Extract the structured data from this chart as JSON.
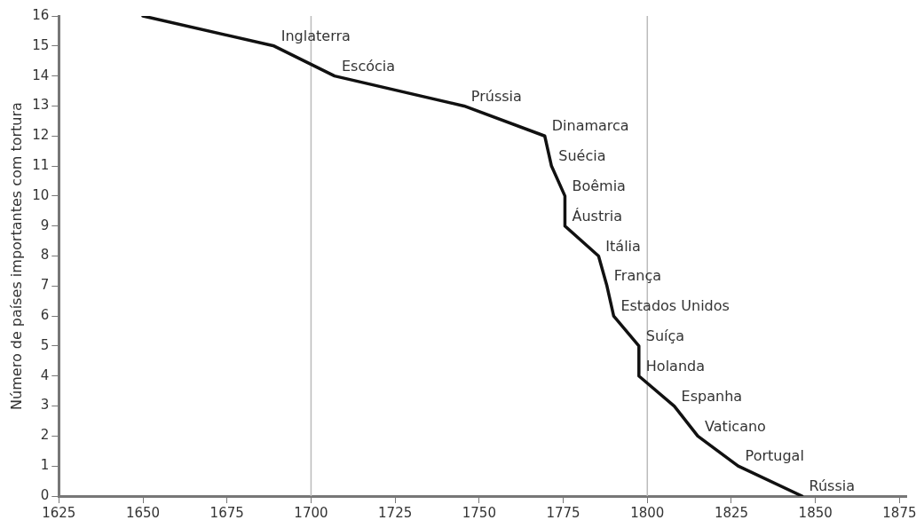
{
  "chart_data": {
    "type": "line",
    "ylabel": "Número de países importantes com tortura",
    "x": [
      1650,
      1689,
      1707,
      1745.5,
      1769.5,
      1771.5,
      1775.5,
      1775.5,
      1785.5,
      1788,
      1790,
      1797.5,
      1797.5,
      1808,
      1815,
      1827,
      1846
    ],
    "series": [
      {
        "color": "#111111",
        "values": [
          16,
          15,
          14,
          13,
          12,
          11,
          10,
          9,
          8,
          7,
          6,
          5,
          4,
          3,
          2,
          1,
          0
        ]
      }
    ],
    "xlim": [
      1625,
      1877
    ],
    "xticks": [
      1625,
      1650,
      1675,
      1700,
      1725,
      1750,
      1775,
      1800,
      1825,
      1850,
      1875
    ],
    "ylim": [
      0,
      16
    ],
    "yticks": [
      0,
      1,
      2,
      3,
      4,
      5,
      6,
      7,
      8,
      9,
      10,
      11,
      12,
      13,
      14,
      15,
      16
    ],
    "grid": false,
    "legend": false,
    "marker": "none",
    "line_style": "solid",
    "ref_lines": [
      {
        "axis": "x",
        "value": 1700,
        "color": "#bbbbbb"
      },
      {
        "axis": "x",
        "value": 1800,
        "color": "#bbbbbb"
      }
    ],
    "annotations": [
      {
        "text": "Inglaterra",
        "x": 1689,
        "y": 15
      },
      {
        "text": "Escócia",
        "x": 1707,
        "y": 14
      },
      {
        "text": "Prússia",
        "x": 1745.5,
        "y": 13
      },
      {
        "text": "Dinamarca",
        "x": 1769.5,
        "y": 12
      },
      {
        "text": "Suécia",
        "x": 1771.5,
        "y": 11
      },
      {
        "text": "Boêmia",
        "x": 1775.5,
        "y": 10
      },
      {
        "text": "Áustria",
        "x": 1775.5,
        "y": 9
      },
      {
        "text": "Itália",
        "x": 1785.5,
        "y": 8
      },
      {
        "text": "França",
        "x": 1788,
        "y": 7
      },
      {
        "text": "Estados Unidos",
        "x": 1790,
        "y": 6
      },
      {
        "text": "Suíça",
        "x": 1797.5,
        "y": 5
      },
      {
        "text": "Holanda",
        "x": 1797.5,
        "y": 4
      },
      {
        "text": "Espanha",
        "x": 1808,
        "y": 3
      },
      {
        "text": "Vaticano",
        "x": 1815,
        "y": 2
      },
      {
        "text": "Portugal",
        "x": 1827,
        "y": 1
      },
      {
        "text": "Rússia",
        "x": 1846,
        "y": 0
      }
    ]
  }
}
